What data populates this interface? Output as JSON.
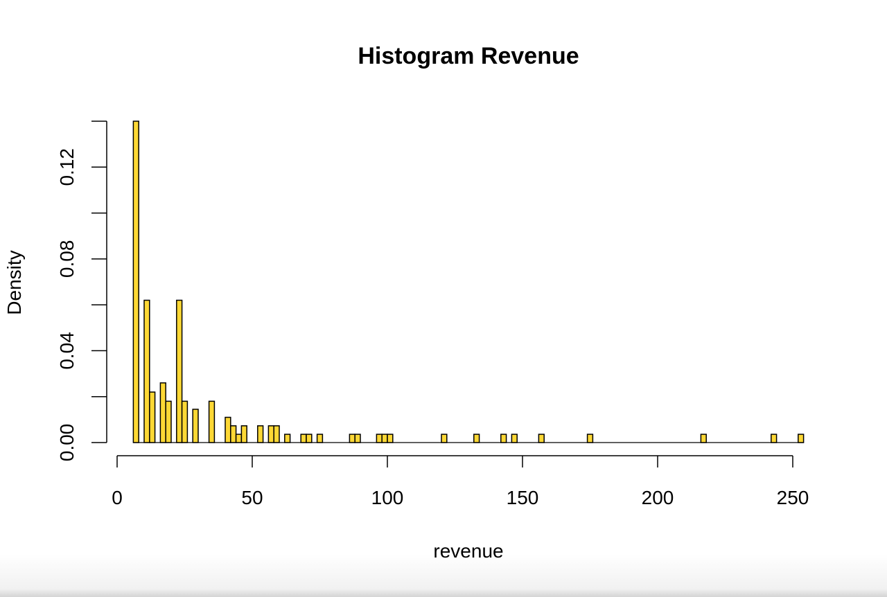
{
  "chart_data": {
    "type": "bar",
    "title": "Histogram Revenue",
    "xlabel": "revenue",
    "ylabel": "Density",
    "xlim": [
      0,
      250
    ],
    "ylim": [
      0,
      0.14
    ],
    "bin_width": 2,
    "x_ticks": [
      "0",
      "50",
      "100",
      "150",
      "200",
      "250"
    ],
    "y_ticks": [
      "0.00",
      "0.04",
      "0.08",
      "0.12"
    ],
    "x_tick_values": [
      0,
      50,
      100,
      150,
      200,
      250
    ],
    "y_tick_values": [
      0.0,
      0.02,
      0.04,
      0.06,
      0.08,
      0.1,
      0.12,
      0.14
    ],
    "y_labeled_values": [
      0.0,
      0.04,
      0.08,
      0.12
    ],
    "grid": false,
    "bar_color": "#FDD835",
    "bar_border_color": "#000000",
    "bins": [
      {
        "x0": 6,
        "x1": 8,
        "density": 0.14
      },
      {
        "x0": 10,
        "x1": 12,
        "density": 0.062
      },
      {
        "x0": 12,
        "x1": 14,
        "density": 0.022
      },
      {
        "x0": 16,
        "x1": 18,
        "density": 0.026
      },
      {
        "x0": 18,
        "x1": 20,
        "density": 0.018
      },
      {
        "x0": 22,
        "x1": 24,
        "density": 0.062
      },
      {
        "x0": 24,
        "x1": 26,
        "density": 0.018
      },
      {
        "x0": 28,
        "x1": 30,
        "density": 0.0145
      },
      {
        "x0": 34,
        "x1": 36,
        "density": 0.018
      },
      {
        "x0": 40,
        "x1": 42,
        "density": 0.011
      },
      {
        "x0": 42,
        "x1": 44,
        "density": 0.0073
      },
      {
        "x0": 44,
        "x1": 46,
        "density": 0.0036
      },
      {
        "x0": 46,
        "x1": 48,
        "density": 0.0073
      },
      {
        "x0": 52,
        "x1": 54,
        "density": 0.0073
      },
      {
        "x0": 56,
        "x1": 58,
        "density": 0.0073
      },
      {
        "x0": 58,
        "x1": 60,
        "density": 0.0073
      },
      {
        "x0": 62,
        "x1": 64,
        "density": 0.0036
      },
      {
        "x0": 68,
        "x1": 70,
        "density": 0.0036
      },
      {
        "x0": 70,
        "x1": 72,
        "density": 0.0036
      },
      {
        "x0": 74,
        "x1": 76,
        "density": 0.0036
      },
      {
        "x0": 86,
        "x1": 88,
        "density": 0.0036
      },
      {
        "x0": 88,
        "x1": 90,
        "density": 0.0036
      },
      {
        "x0": 96,
        "x1": 98,
        "density": 0.0036
      },
      {
        "x0": 98,
        "x1": 100,
        "density": 0.0036
      },
      {
        "x0": 100,
        "x1": 102,
        "density": 0.0036
      },
      {
        "x0": 120,
        "x1": 122,
        "density": 0.0036
      },
      {
        "x0": 132,
        "x1": 134,
        "density": 0.0036
      },
      {
        "x0": 142,
        "x1": 144,
        "density": 0.0036
      },
      {
        "x0": 146,
        "x1": 148,
        "density": 0.0036
      },
      {
        "x0": 156,
        "x1": 158,
        "density": 0.0036
      },
      {
        "x0": 174,
        "x1": 176,
        "density": 0.0036
      },
      {
        "x0": 216,
        "x1": 218,
        "density": 0.0036
      },
      {
        "x0": 242,
        "x1": 244,
        "density": 0.0036
      },
      {
        "x0": 252,
        "x1": 254,
        "density": 0.0036
      }
    ],
    "histogram_range": [
      6,
      254
    ]
  }
}
